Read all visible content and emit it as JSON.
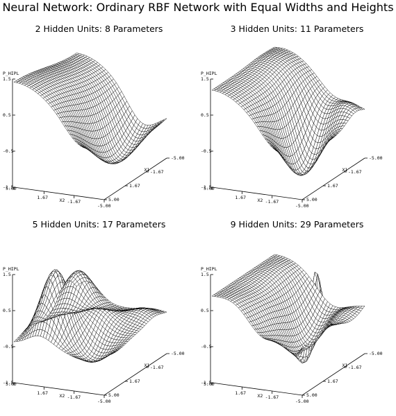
{
  "page_title": "Neural Network: Ordinary RBF Network with Equal Widths and Heights",
  "chart_data": [
    {
      "type": "surface",
      "title": "2 Hidden Units: 8 Parameters",
      "zlabel": "P_HIPL",
      "xlabel": "X2",
      "ylabel": "X1",
      "z_ticks": [
        "1.5",
        "0.5",
        "-0.5",
        "-1.5"
      ],
      "x_ticks": [
        "5.00",
        "1.67",
        "-1.67",
        "-5.00"
      ],
      "y_ticks": [
        "5.00",
        "1.67",
        "-1.67",
        "-5.00"
      ],
      "zlim": [
        -1.5,
        1.5
      ],
      "xlim": [
        -5,
        5
      ],
      "ylim": [
        -5,
        5
      ],
      "hidden_units": 2,
      "parameters": 8,
      "shape": "broad ridge on the left corner descending into a wide trough toward the right corner"
    },
    {
      "type": "surface",
      "title": "3 Hidden Units: 11 Parameters",
      "zlabel": "P_HIPL",
      "xlabel": "X2",
      "ylabel": "X1",
      "z_ticks": [
        "1.5",
        "0.5",
        "-0.5",
        "-1.5"
      ],
      "x_ticks": [
        "5.00",
        "1.67",
        "-1.67",
        "-5.00"
      ],
      "y_ticks": [
        "5.00",
        "1.67",
        "-1.67",
        "-5.00"
      ],
      "zlim": [
        -1.5,
        1.5
      ],
      "xlim": [
        -5,
        5
      ],
      "ylim": [
        -5,
        5
      ],
      "hidden_units": 3,
      "parameters": 11,
      "shape": "ridge on the left, deeper trough in front, small rise toward the right corner"
    },
    {
      "type": "surface",
      "title": "5 Hidden Units: 17 Parameters",
      "zlabel": "P_HIPL",
      "xlabel": "X2",
      "ylabel": "X1",
      "z_ticks": [
        "1.5",
        "0.5",
        "-0.5",
        "-1.5"
      ],
      "x_ticks": [
        "5.00",
        "1.67",
        "-1.67",
        "-5.00"
      ],
      "y_ticks": [
        "5.00",
        "1.67",
        "-1.67",
        "-5.00"
      ],
      "zlim": [
        -1.5,
        1.5
      ],
      "xlim": [
        -5,
        5
      ],
      "ylim": [
        -5,
        5
      ],
      "hidden_units": 5,
      "parameters": 17,
      "shape": "several rounded bumps including a tall peak at the back"
    },
    {
      "type": "surface",
      "title": "9 Hidden Units: 29 Parameters",
      "zlabel": "P_HIPL",
      "xlabel": "X2",
      "ylabel": "X1",
      "z_ticks": [
        "1.5",
        "0.5",
        "-0.5",
        "-1.5"
      ],
      "x_ticks": [
        "5.00",
        "1.67",
        "-1.67",
        "-5.00"
      ],
      "y_ticks": [
        "5.00",
        "1.67",
        "-1.67",
        "-5.00"
      ],
      "zlim": [
        -1.5,
        1.5
      ],
      "xlim": [
        -5,
        5
      ],
      "ylim": [
        -5,
        5
      ],
      "hidden_units": 9,
      "parameters": 29,
      "shape": "ridge on the left, sharp narrow peak near the right side, wavy valley in front"
    }
  ]
}
